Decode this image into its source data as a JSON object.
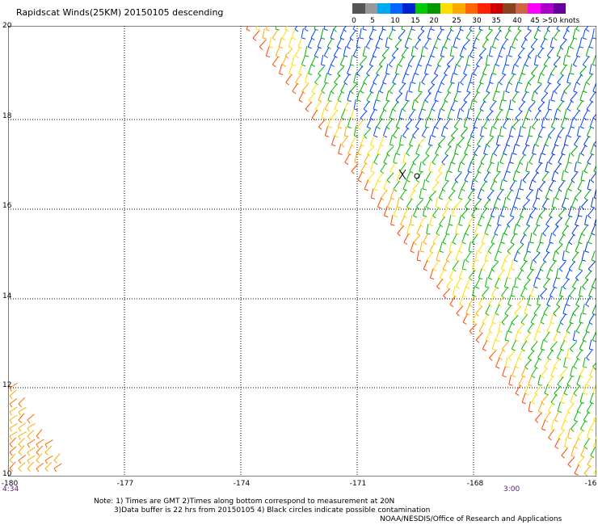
{
  "title": "Rapidscat Winds(25KM) 20150105 descending",
  "legend": {
    "colors": [
      "#555555",
      "#999999",
      "#00aaee",
      "#0066ff",
      "#0022cc",
      "#00cc00",
      "#009900",
      "#ffdd00",
      "#ffaa00",
      "#ff6600",
      "#ff2200",
      "#cc0000",
      "#884422",
      "#cc6644",
      "#ff00ff",
      "#aa00cc",
      "#660099"
    ],
    "ticks": [
      "0",
      "5",
      "10",
      "15",
      "20",
      "25",
      "30",
      "35",
      "40",
      "45",
      ">50 knots"
    ]
  },
  "axes": {
    "y_labels": [
      "20",
      "18",
      "16",
      "14",
      "12",
      "10"
    ],
    "x_labels": [
      "-180",
      "-177",
      "-174",
      "-171",
      "-168",
      "-16"
    ]
  },
  "times": {
    "left": "4:34",
    "right": "3:00"
  },
  "notes": {
    "line1": "Note: 1) Times are GMT 2)Times along bottom correspond to measurement at 20N",
    "line2": "3)Data buffer is 22 hrs from 20150105 4) Black circles indicate possible contamination",
    "credit": "NOAA/NESDIS/Office of Research and Applications"
  }
}
